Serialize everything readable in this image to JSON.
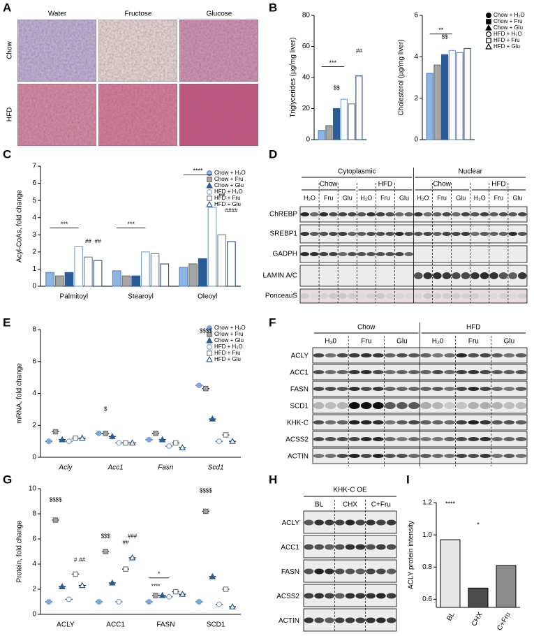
{
  "panel_labels": [
    "A",
    "B",
    "C",
    "D",
    "E",
    "F",
    "G",
    "H",
    "I"
  ],
  "histology": {
    "columns": [
      "Water",
      "Fructose",
      "Glucose"
    ],
    "rows": [
      "Chow",
      "HFD"
    ]
  },
  "chart_data": [
    {
      "type": "bar",
      "ylabel": "Triglycerides (µg/mg liver)",
      "categories": [
        null
      ],
      "ylim": [
        0,
        80
      ],
      "yticks": [
        0,
        20,
        40,
        60,
        80
      ],
      "series": [
        {
          "color": "#5b8cc8",
          "fill": "#8db4e2",
          "values": [
            6
          ]
        },
        {
          "color": "#707070",
          "fill": "#a6a6a6",
          "values": [
            9
          ]
        },
        {
          "color": "#2b5c95",
          "fill": "#2b5c95",
          "values": [
            20
          ]
        },
        {
          "color": "#7ea6d8",
          "fill": "#ffffff",
          "values": [
            26
          ]
        },
        {
          "color": "#808080",
          "fill": "#ffffff",
          "values": [
            23
          ]
        },
        {
          "color": "#2b5c95",
          "fill": "#ffffff",
          "values": [
            41
          ]
        }
      ],
      "annotations": [
        "***",
        "$$",
        "##"
      ]
    },
    {
      "type": "bar",
      "ylabel": "Cholesterol (µg/mg liver)",
      "categories": [
        null
      ],
      "ylim": [
        0,
        6
      ],
      "yticks": [
        0,
        2,
        4,
        6
      ],
      "series": [
        {
          "name": "Chow + H₂O",
          "color": "#5b8cc8",
          "fill": "#8db4e2",
          "marker": "circle",
          "values": [
            3.2
          ]
        },
        {
          "name": "Chow + Fru",
          "color": "#707070",
          "fill": "#a6a6a6",
          "marker": "square",
          "values": [
            3.6
          ]
        },
        {
          "name": "Chow + Glu",
          "color": "#2b5c95",
          "fill": "#2b5c95",
          "marker": "triangle",
          "values": [
            4.1
          ]
        },
        {
          "name": "HFD + H₂O",
          "color": "#7ea6d8",
          "fill": "#ffffff",
          "marker": "circle",
          "values": [
            4.3
          ]
        },
        {
          "name": "HFD + Fru",
          "color": "#808080",
          "fill": "#ffffff",
          "marker": "square",
          "values": [
            4.2
          ]
        },
        {
          "name": "HFD + Glu",
          "color": "#2b5c95",
          "fill": "#ffffff",
          "marker": "triangle",
          "values": [
            4.4
          ]
        }
      ],
      "annotations": [
        "**",
        "$$"
      ]
    },
    {
      "type": "bar",
      "ylabel": "Acyl-CoAs, fold change",
      "categories": [
        "Palmitoyl",
        "Stearoyl",
        "Oleoyl"
      ],
      "ylim": [
        0,
        7
      ],
      "yticks": [
        0,
        1,
        2,
        3,
        4,
        5,
        6,
        7
      ],
      "series": [
        {
          "name": "Chow + H₂O",
          "color": "#5b8cc8",
          "fill": "#8db4e2",
          "marker": "circle",
          "values": [
            0.8,
            0.9,
            1.1
          ]
        },
        {
          "name": "Chow + Fru",
          "color": "#707070",
          "fill": "#a6a6a6",
          "marker": "square",
          "values": [
            0.6,
            0.6,
            1.3
          ]
        },
        {
          "name": "Chow + Glu",
          "color": "#2b5c95",
          "fill": "#2b5c95",
          "marker": "triangle",
          "values": [
            0.8,
            0.6,
            1.6
          ]
        },
        {
          "name": "HFD + H₂O",
          "color": "#7ea6d8",
          "fill": "#ffffff",
          "marker": "circle",
          "values": [
            2.3,
            2.0,
            4.6
          ]
        },
        {
          "name": "HFD + Fru",
          "color": "#808080",
          "fill": "#ffffff",
          "marker": "square",
          "values": [
            1.7,
            1.9,
            3.0
          ]
        },
        {
          "name": "HFD + Glu",
          "color": "#2b5c95",
          "fill": "#ffffff",
          "marker": "triangle",
          "values": [
            1.5,
            1.3,
            2.6
          ]
        }
      ],
      "annotations": [
        "***",
        "***",
        "****",
        "##",
        "##",
        "##",
        "####"
      ]
    },
    {
      "type": "dot",
      "ylabel": "mRNA, fold change",
      "categories": [
        "Acly",
        "Acc1",
        "Fasn",
        "Scd1"
      ],
      "ylim": [
        0,
        8
      ],
      "yticks": [
        0,
        2,
        4,
        6,
        8
      ],
      "series": [
        {
          "name": "Chow + H₂O",
          "color": "#7ea6d8",
          "fill": "#7ea6d8",
          "marker": "circle",
          "values": [
            1.0,
            1.5,
            1.1,
            4.5
          ]
        },
        {
          "name": "Chow + Fru",
          "color": "#707070",
          "fill": "#a6a6a6",
          "marker": "square",
          "values": [
            1.6,
            1.5,
            1.5,
            4.3
          ]
        },
        {
          "name": "Chow + Glu",
          "color": "#2b5c95",
          "fill": "#2b5c95",
          "marker": "triangle",
          "values": [
            1.1,
            1.3,
            1.1,
            2.4
          ]
        },
        {
          "name": "HFD + H₂O",
          "color": "#7ea6d8",
          "fill": "#ffffff",
          "marker": "circle",
          "values": [
            1.0,
            0.9,
            0.7,
            1.0
          ]
        },
        {
          "name": "HFD + Fru",
          "color": "#808080",
          "fill": "#ffffff",
          "marker": "square",
          "values": [
            1.2,
            0.9,
            0.9,
            1.4
          ]
        },
        {
          "name": "HFD + Glu",
          "color": "#2b5c95",
          "fill": "#ffffff",
          "marker": "triangle",
          "values": [
            1.2,
            0.9,
            0.6,
            1.0
          ]
        }
      ],
      "annotations": [
        "$",
        "$$$$"
      ]
    },
    {
      "type": "dot",
      "ylabel": "Protein, fold change",
      "categories": [
        "ACLY",
        "ACC1",
        "FASN",
        "SCD1"
      ],
      "ylim": [
        0,
        10
      ],
      "yticks": [
        0,
        2,
        4,
        6,
        8,
        10
      ],
      "series": [
        {
          "color": "#7ea6d8",
          "fill": "#7ea6d8",
          "marker": "circle",
          "values": [
            1.0,
            1.0,
            1.0,
            1.0
          ]
        },
        {
          "color": "#707070",
          "fill": "#a6a6a6",
          "marker": "square",
          "values": [
            7.5,
            5.0,
            1.5,
            8.2
          ]
        },
        {
          "color": "#2b5c95",
          "fill": "#2b5c95",
          "marker": "triangle",
          "values": [
            2.2,
            2.5,
            1.5,
            3.0
          ]
        },
        {
          "color": "#7ea6d8",
          "fill": "#ffffff",
          "marker": "circle",
          "values": [
            1.2,
            1.0,
            1.4,
            0.8
          ]
        },
        {
          "color": "#808080",
          "fill": "#ffffff",
          "marker": "square",
          "values": [
            3.2,
            3.6,
            1.8,
            2.0
          ]
        },
        {
          "color": "#2b5c95",
          "fill": "#ffffff",
          "marker": "triangle",
          "values": [
            2.3,
            4.5,
            1.6,
            0.6
          ]
        }
      ],
      "annotations": [
        "$$$$",
        "#",
        "##",
        "$$$",
        "##",
        "###",
        "*",
        "****",
        "$$$$"
      ]
    },
    {
      "type": "bar",
      "ylabel": "ACLY protein intensity",
      "categories": [
        "BL",
        "CHX",
        "C+Fru"
      ],
      "values": [
        0.97,
        0.67,
        0.81
      ],
      "colors": [
        "#e6e6e6",
        "#4d4d4d",
        "#8c8c8c"
      ],
      "ylim": [
        0.55,
        1.2
      ],
      "yticks": [
        0.6,
        0.8,
        {
          "value": 1,
          "label": "1.0"
        },
        1.2
      ],
      "annotations": [
        "****",
        "*"
      ]
    }
  ],
  "blot_D": {
    "groups": [
      "Cytoplasmic",
      "Nuclear"
    ],
    "diets": [
      "Chow",
      "HFD",
      "Chow",
      "HFD"
    ],
    "lanes": [
      "H₂O",
      "Fru",
      "Glu",
      "H₂O",
      "Fru",
      "Glu",
      "H₂O",
      "Fru",
      "Glu",
      "H₂O",
      "Fru",
      "Glu"
    ],
    "rows": [
      "ChREBP",
      "SREBP1",
      "GADPH",
      "LAMIN A/C",
      "PonceauS"
    ]
  },
  "blot_F": {
    "diets": [
      "Chow",
      "HFD"
    ],
    "lanes": [
      "H₂0",
      "Fru",
      "Glu",
      "H₂0",
      "Fru",
      "Glu"
    ],
    "rows": [
      "ACLY",
      "ACC1",
      "FASN",
      "SCD1",
      "KHK-C",
      "ACSS2",
      "ACTIN"
    ]
  },
  "blot_H": {
    "header": "KHK-C OE",
    "lanes": [
      "BL",
      "CHX",
      "C+Fru"
    ],
    "rows": [
      "ACLY",
      "ACC1",
      "FASN",
      "ACSS2",
      "ACTIN"
    ]
  }
}
